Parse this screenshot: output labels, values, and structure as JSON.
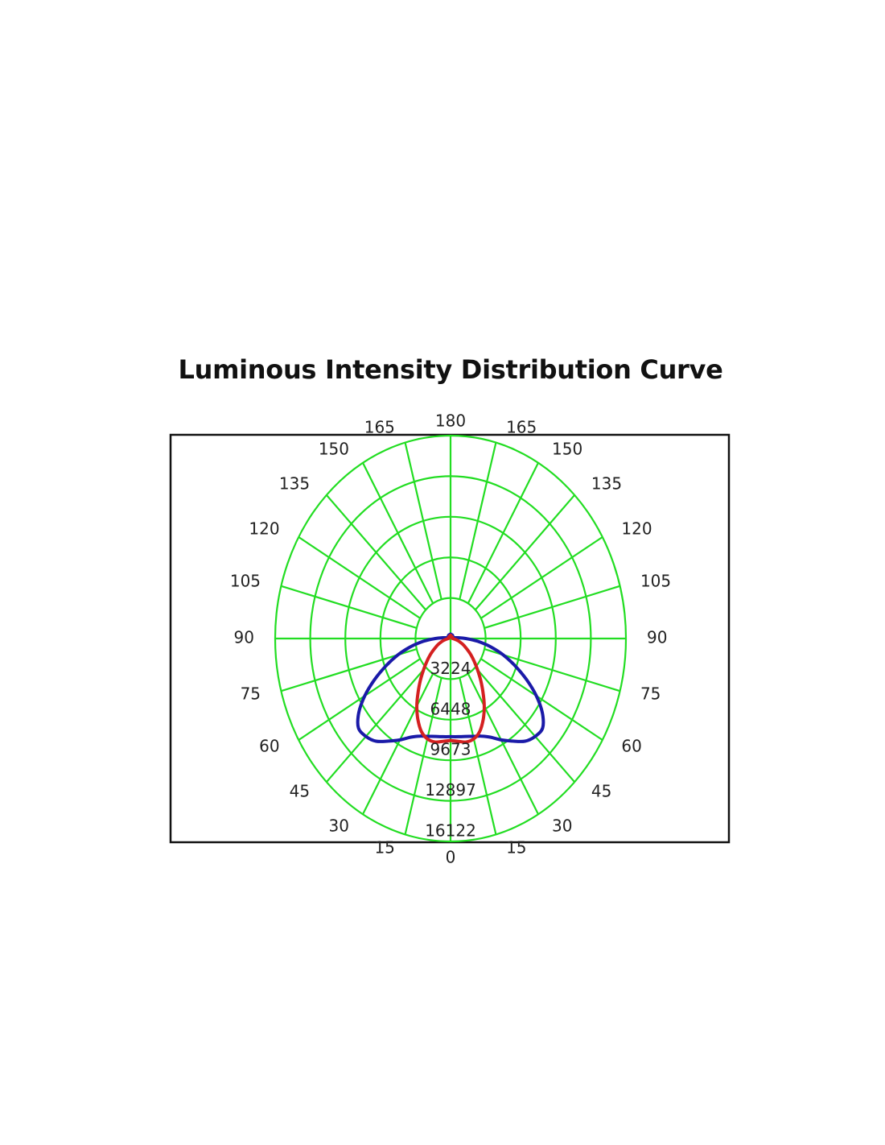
{
  "chart_data": {
    "type": "polar",
    "title": "Luminous Intensity Distribution Curve",
    "angle_labels": {
      "bottom": "0",
      "top": "180",
      "left": [
        "15",
        "30",
        "45",
        "60",
        "75",
        "90",
        "105",
        "120",
        "135",
        "150",
        "165"
      ],
      "right": [
        "15",
        "30",
        "45",
        "60",
        "75",
        "90",
        "105",
        "120",
        "135",
        "150",
        "165"
      ]
    },
    "radial_tick_labels": [
      "3224",
      "6448",
      "9673",
      "12897",
      "16122"
    ],
    "radial_ticks": [
      3224,
      6448,
      9673,
      12897,
      16122
    ],
    "rmax": 16122,
    "angle_range": [
      0,
      180
    ],
    "angle_step": 15,
    "grid": true,
    "colors": {
      "grid": "#22dd22",
      "frame": "#111111"
    },
    "series": [
      {
        "color": "#1a1aa8",
        "points": [
          [
            0,
            7800
          ],
          [
            5,
            7830
          ],
          [
            10,
            7900
          ],
          [
            15,
            8050
          ],
          [
            20,
            8250
          ],
          [
            25,
            8650
          ],
          [
            30,
            9300
          ],
          [
            35,
            9950
          ],
          [
            40,
            10650
          ],
          [
            45,
            11000
          ],
          [
            50,
            11050
          ],
          [
            55,
            10300
          ],
          [
            60,
            9100
          ],
          [
            65,
            7700
          ],
          [
            70,
            6300
          ],
          [
            75,
            5000
          ],
          [
            80,
            3700
          ],
          [
            85,
            2500
          ],
          [
            90,
            1400
          ],
          [
            95,
            700
          ],
          [
            100,
            350
          ],
          [
            110,
            250
          ],
          [
            130,
            280
          ],
          [
            150,
            320
          ],
          [
            180,
            350
          ]
        ]
      },
      {
        "color": "#d42020",
        "points": [
          [
            0,
            8100
          ],
          [
            5,
            8200
          ],
          [
            10,
            8350
          ],
          [
            15,
            8250
          ],
          [
            20,
            7850
          ],
          [
            25,
            7100
          ],
          [
            30,
            6200
          ],
          [
            35,
            5200
          ],
          [
            40,
            4300
          ],
          [
            45,
            3500
          ],
          [
            50,
            2850
          ],
          [
            55,
            2300
          ],
          [
            60,
            1800
          ],
          [
            65,
            1400
          ],
          [
            70,
            1050
          ],
          [
            75,
            750
          ],
          [
            80,
            500
          ],
          [
            85,
            300
          ],
          [
            90,
            200
          ],
          [
            100,
            150
          ],
          [
            130,
            200
          ],
          [
            180,
            250
          ]
        ]
      }
    ]
  }
}
